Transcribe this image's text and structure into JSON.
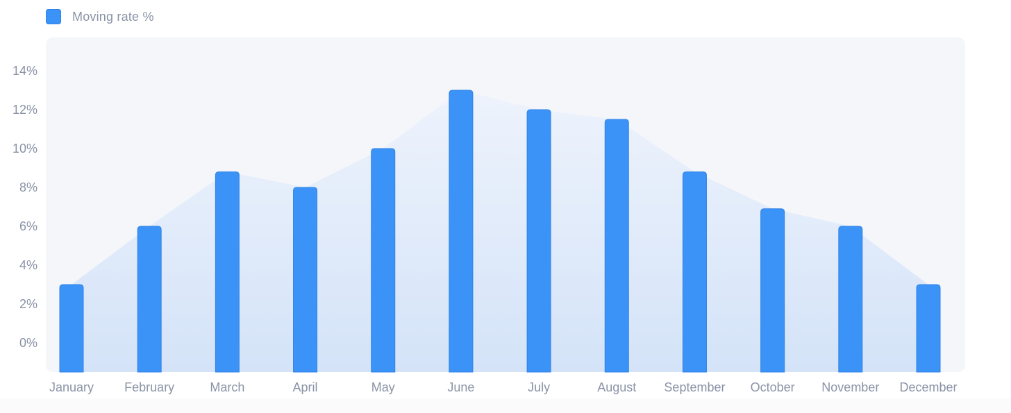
{
  "legend": {
    "label": "Moving rate %",
    "color": "#3b93f7"
  },
  "colors": {
    "bar": "#3b93f7",
    "bar_stroke": "#2f82e8",
    "plot_background": "#f4f6fa",
    "area_top": "#eef3fc",
    "area_bottom": "#d4e3f8",
    "tick_text": "#8a93a6"
  },
  "chart_data": {
    "type": "bar",
    "categories": [
      "January",
      "February",
      "March",
      "April",
      "May",
      "June",
      "July",
      "August",
      "September",
      "October",
      "November",
      "December"
    ],
    "series": [
      {
        "name": "Moving rate %",
        "values": [
          3,
          6,
          8.8,
          8,
          10,
          13,
          12,
          11.5,
          8.8,
          6.9,
          6,
          3
        ]
      }
    ],
    "overlay": "shaded area following the bar tops",
    "y_ticks": [
      "0%",
      "2%",
      "4%",
      "6%",
      "8%",
      "10%",
      "12%",
      "14%"
    ],
    "y_tick_values": [
      0,
      2,
      4,
      6,
      8,
      10,
      12,
      14
    ],
    "ylim": [
      -1.5,
      15.5
    ],
    "grid": false,
    "legend_position": "top-left"
  }
}
